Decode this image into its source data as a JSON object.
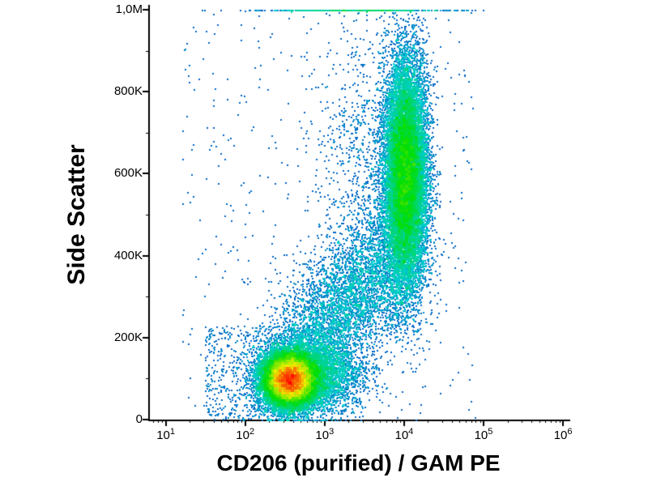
{
  "chart_data": {
    "type": "scatter",
    "subtype": "flow-cytometry-density-dot-plot",
    "title": "",
    "xlabel": "CD206 (purified) / GAM PE",
    "ylabel": "Side Scatter",
    "x_scale": "log10",
    "x_range_log10": [
      0.8,
      6.05
    ],
    "y_scale": "linear",
    "y_range": [
      0,
      1000000
    ],
    "grid": false,
    "legend": false,
    "background": "#ffffff",
    "axis_color": "#000000",
    "colormap": "density rainbow: blue (sparse) - cyan - green - yellow - red (dense)",
    "x_ticks": [
      {
        "mantissa": "10",
        "exponent": "1",
        "log10": 1
      },
      {
        "mantissa": "10",
        "exponent": "2",
        "log10": 2
      },
      {
        "mantissa": "10",
        "exponent": "3",
        "log10": 3
      },
      {
        "mantissa": "10",
        "exponent": "4",
        "log10": 4
      },
      {
        "mantissa": "10",
        "exponent": "5",
        "log10": 5
      },
      {
        "mantissa": "10",
        "exponent": "6",
        "log10": 6
      }
    ],
    "y_ticks": [
      {
        "label": "0",
        "value": 0
      },
      {
        "label": "200K",
        "value": 200000
      },
      {
        "label": "400K",
        "value": 400000
      },
      {
        "label": "600K",
        "value": 600000
      },
      {
        "label": "800K",
        "value": 800000
      },
      {
        "label": "1,0M",
        "value": 1000000
      }
    ],
    "populations": [
      {
        "name": "cd206-negative-low-ssc-core",
        "type": "gauss",
        "count": 22000,
        "x_log_mean": 2.56,
        "x_log_sd": 0.17,
        "y_mean": 100000,
        "y_sd": 33000
      },
      {
        "name": "cd206-negative-low-ssc-right-tail",
        "type": "gauss",
        "count": 2800,
        "x_log_mean": 2.95,
        "x_log_sd": 0.27,
        "y_mean": 110000,
        "y_sd": 45000
      },
      {
        "name": "cd206-positive-high-ssc",
        "type": "gauss",
        "count": 18000,
        "x_log_mean": 4.02,
        "x_log_sd": 0.13,
        "y_mean": 600000,
        "y_sd": 135000
      },
      {
        "name": "transitional-band",
        "type": "band",
        "count": 5200,
        "x_log_start": 2.62,
        "y_start": 130000,
        "x_log_end": 3.92,
        "y_end": 430000,
        "x_log_sd": 0.26,
        "y_sd": 70000
      },
      {
        "name": "upper-left-scatter",
        "type": "gauss",
        "count": 900,
        "x_log_mean": 3.55,
        "x_log_sd": 0.35,
        "y_mean": 620000,
        "y_sd": 190000
      },
      {
        "name": "background-noise",
        "type": "uniform",
        "count": 500,
        "x_log_min": 1.2,
        "x_log_max": 4.9,
        "y_min": 0,
        "y_max": 1000000
      },
      {
        "name": "low-left-debris",
        "type": "uniform",
        "count": 700,
        "x_log_min": 1.5,
        "x_log_max": 2.75,
        "y_min": 0,
        "y_max": 230000
      },
      {
        "name": "ssc-max-clipped-events",
        "type": "gauss",
        "count": 600,
        "x_log_mean": 3.4,
        "x_log_sd": 0.55,
        "y_mean": 1000000,
        "y_sd": 1
      }
    ],
    "events_total_approx": 50700,
    "render": {
      "point_size": 2,
      "bin_size": 3,
      "density_gamma": 0.45,
      "seed": 42
    }
  }
}
